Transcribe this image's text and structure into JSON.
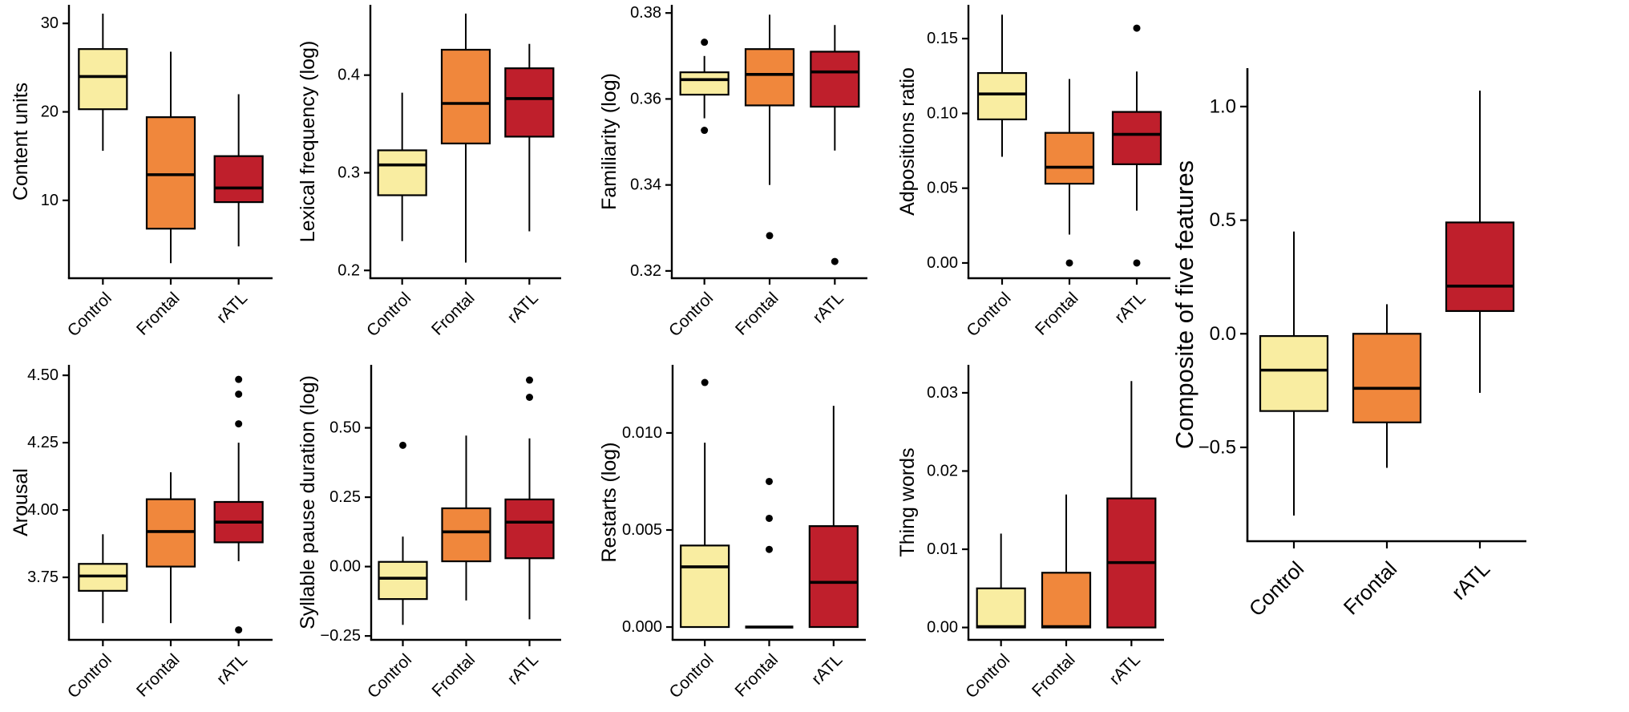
{
  "figure": {
    "description": "Grid of nine box plots comparing Control, Frontal and rATL groups",
    "groups": [
      "Control",
      "Frontal",
      "rATL"
    ]
  },
  "chart_data": {
    "type": "boxplot-grid",
    "categories": [
      "Control",
      "Frontal",
      "rATL"
    ],
    "series_colors": {
      "Control": "#F9EDA1",
      "Frontal": "#F0873C",
      "rATL": "#BF1F2C"
    },
    "stroke_color": "#000000",
    "legend": "none",
    "panels": [
      {
        "id": "content-units",
        "ylabel": "Content units",
        "ylim": [
          1.2,
          32.1
        ],
        "yticks": [
          {
            "v": 10,
            "label": "10"
          },
          {
            "v": 20,
            "label": "20"
          },
          {
            "v": 30,
            "label": "30"
          }
        ],
        "boxes": [
          {
            "category": "Control",
            "low": 15.6,
            "q1": 20.3,
            "median": 24.0,
            "q3": 27.1,
            "high": 31.1,
            "outliers": []
          },
          {
            "category": "Frontal",
            "low": 2.9,
            "q1": 6.8,
            "median": 12.9,
            "q3": 19.4,
            "high": 26.8,
            "outliers": []
          },
          {
            "category": "rATL",
            "low": 4.8,
            "q1": 9.8,
            "median": 11.4,
            "q3": 15.0,
            "high": 22.0,
            "outliers": []
          }
        ]
      },
      {
        "id": "lexical-frequency",
        "ylabel": "Lexical frequency (log)",
        "ylim": [
          0.192,
          0.472
        ],
        "yticks": [
          {
            "v": 0.2,
            "label": "0.2"
          },
          {
            "v": 0.3,
            "label": "0.3"
          },
          {
            "v": 0.4,
            "label": "0.4"
          }
        ],
        "boxes": [
          {
            "category": "Control",
            "low": 0.23,
            "q1": 0.277,
            "median": 0.308,
            "q3": 0.323,
            "high": 0.382,
            "outliers": []
          },
          {
            "category": "Frontal",
            "low": 0.208,
            "q1": 0.33,
            "median": 0.371,
            "q3": 0.426,
            "high": 0.463,
            "outliers": []
          },
          {
            "category": "rATL",
            "low": 0.24,
            "q1": 0.337,
            "median": 0.376,
            "q3": 0.407,
            "high": 0.432,
            "outliers": []
          }
        ]
      },
      {
        "id": "familiarity",
        "ylabel": "Familiarity (log)",
        "ylim": [
          0.3183,
          0.3819
        ],
        "yticks": [
          {
            "v": 0.32,
            "label": "0.32"
          },
          {
            "v": 0.34,
            "label": "0.34"
          },
          {
            "v": 0.36,
            "label": "0.36"
          },
          {
            "v": 0.38,
            "label": "0.38"
          }
        ],
        "boxes": [
          {
            "category": "Control",
            "low": 0.3555,
            "q1": 0.361,
            "median": 0.3645,
            "q3": 0.3662,
            "high": 0.37,
            "outliers": [
              0.3732,
              0.3527
            ]
          },
          {
            "category": "Frontal",
            "low": 0.34,
            "q1": 0.3585,
            "median": 0.3657,
            "q3": 0.3716,
            "high": 0.3796,
            "outliers": [
              0.3282
            ]
          },
          {
            "category": "rATL",
            "low": 0.348,
            "q1": 0.3582,
            "median": 0.3663,
            "q3": 0.371,
            "high": 0.3772,
            "outliers": [
              0.3222
            ]
          }
        ]
      },
      {
        "id": "adpositions-ratio",
        "ylabel": "Adpositions ratio",
        "ylim": [
          -0.0102,
          0.1726
        ],
        "yticks": [
          {
            "v": 0.0,
            "label": "0.00"
          },
          {
            "v": 0.05,
            "label": "0.05"
          },
          {
            "v": 0.1,
            "label": "0.10"
          },
          {
            "v": 0.15,
            "label": "0.15"
          }
        ],
        "boxes": [
          {
            "category": "Control",
            "low": 0.071,
            "q1": 0.096,
            "median": 0.113,
            "q3": 0.127,
            "high": 0.166,
            "outliers": []
          },
          {
            "category": "Frontal",
            "low": 0.019,
            "q1": 0.053,
            "median": 0.064,
            "q3": 0.087,
            "high": 0.123,
            "outliers": [
              0.0
            ]
          },
          {
            "category": "rATL",
            "low": 0.035,
            "q1": 0.066,
            "median": 0.086,
            "q3": 0.101,
            "high": 0.128,
            "outliers": [
              0.157,
              0.0
            ]
          }
        ]
      },
      {
        "id": "arousal",
        "ylabel": "Arousal",
        "ylim": [
          3.518,
          4.539
        ],
        "yticks": [
          {
            "v": 3.75,
            "label": "3.75"
          },
          {
            "v": 4.0,
            "label": "4.00"
          },
          {
            "v": 4.25,
            "label": "4.25"
          },
          {
            "v": 4.5,
            "label": "4.50"
          }
        ],
        "boxes": [
          {
            "category": "Control",
            "low": 3.58,
            "q1": 3.7,
            "median": 3.755,
            "q3": 3.8,
            "high": 3.91,
            "outliers": []
          },
          {
            "category": "Frontal",
            "low": 3.58,
            "q1": 3.79,
            "median": 3.92,
            "q3": 4.04,
            "high": 4.14,
            "outliers": []
          },
          {
            "category": "rATL",
            "low": 3.81,
            "q1": 3.88,
            "median": 3.955,
            "q3": 4.03,
            "high": 4.25,
            "outliers": [
              4.485,
              4.43,
              4.32,
              3.555
            ]
          }
        ]
      },
      {
        "id": "syllable-pause-duration",
        "ylabel": "Syllable pause duration (log)",
        "ylim": [
          -0.264,
          0.727
        ],
        "yticks": [
          {
            "v": -0.25,
            "label": "−0.25"
          },
          {
            "v": 0.0,
            "label": "0.00"
          },
          {
            "v": 0.25,
            "label": "0.25"
          },
          {
            "v": 0.5,
            "label": "0.50"
          }
        ],
        "boxes": [
          {
            "category": "Control",
            "low": -0.21,
            "q1": -0.117,
            "median": -0.042,
            "q3": 0.017,
            "high": 0.108,
            "outliers": [
              0.437
            ]
          },
          {
            "category": "Frontal",
            "low": -0.122,
            "q1": 0.019,
            "median": 0.125,
            "q3": 0.21,
            "high": 0.472,
            "outliers": []
          },
          {
            "category": "rATL",
            "low": -0.19,
            "q1": 0.03,
            "median": 0.16,
            "q3": 0.242,
            "high": 0.462,
            "outliers": [
              0.672,
              0.61
            ]
          }
        ]
      },
      {
        "id": "restarts",
        "ylabel": "Restarts (log)",
        "ylim": [
          -0.00066,
          0.01351
        ],
        "yticks": [
          {
            "v": 0.0,
            "label": "0.000"
          },
          {
            "v": 0.005,
            "label": "0.005"
          },
          {
            "v": 0.01,
            "label": "0.010"
          }
        ],
        "boxes": [
          {
            "category": "Control",
            "low": 0.0,
            "q1": 0.0,
            "median": 0.0031,
            "q3": 0.0042,
            "high": 0.0095,
            "outliers": [
              0.0126
            ]
          },
          {
            "category": "Frontal",
            "low": 0.0,
            "q1": 0.0,
            "median": 0.0,
            "q3": 0.0,
            "high": 0.0,
            "outliers": [
              0.0075,
              0.0056,
              0.004
            ]
          },
          {
            "category": "rATL",
            "low": 0.0,
            "q1": 0.0,
            "median": 0.0023,
            "q3": 0.0052,
            "high": 0.0114,
            "outliers": []
          }
        ]
      },
      {
        "id": "thing-words",
        "ylabel": "Thing words",
        "ylim": [
          -0.00158,
          0.03358
        ],
        "yticks": [
          {
            "v": 0.0,
            "label": "0.00"
          },
          {
            "v": 0.01,
            "label": "0.01"
          },
          {
            "v": 0.02,
            "label": "0.02"
          },
          {
            "v": 0.03,
            "label": "0.03"
          }
        ],
        "boxes": [
          {
            "category": "Control",
            "low": 0.0,
            "q1": 0.0,
            "median": 0.0001,
            "q3": 0.005,
            "high": 0.012,
            "outliers": []
          },
          {
            "category": "Frontal",
            "low": 0.0,
            "q1": 0.0,
            "median": 0.0001,
            "q3": 0.007,
            "high": 0.017,
            "outliers": []
          },
          {
            "category": "rATL",
            "low": 0.0,
            "q1": 0.0,
            "median": 0.0083,
            "q3": 0.0165,
            "high": 0.0315,
            "outliers": []
          }
        ]
      },
      {
        "id": "composite",
        "ylabel": "Composite of five features",
        "ylim": [
          -0.913,
          1.169
        ],
        "yticks": [
          {
            "v": -0.5,
            "label": "−0.5"
          },
          {
            "v": 0.0,
            "label": "0.0"
          },
          {
            "v": 0.5,
            "label": "0.5"
          },
          {
            "v": 1.0,
            "label": "1.0"
          }
        ],
        "boxes": [
          {
            "category": "Control",
            "low": -0.8,
            "q1": -0.34,
            "median": -0.16,
            "q3": -0.01,
            "high": 0.45,
            "outliers": []
          },
          {
            "category": "Frontal",
            "low": -0.59,
            "q1": -0.39,
            "median": -0.24,
            "q3": 0.0,
            "high": 0.13,
            "outliers": []
          },
          {
            "category": "rATL",
            "low": -0.26,
            "q1": 0.1,
            "median": 0.21,
            "q3": 0.49,
            "high": 1.07,
            "outliers": []
          }
        ]
      }
    ]
  }
}
